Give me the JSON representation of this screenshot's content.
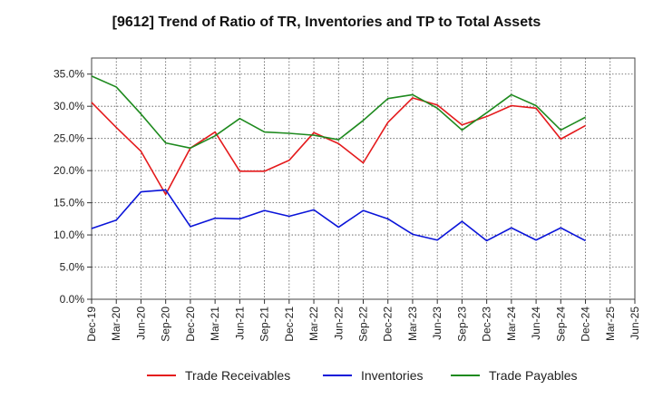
{
  "chart_data": {
    "type": "line",
    "title": "[9612]  Trend of Ratio of TR, Inventories and TP to Total Assets",
    "xlabel": "",
    "ylabel": "",
    "ylim": [
      0,
      0.375
    ],
    "yticks": [
      "0.0%",
      "5.0%",
      "10.0%",
      "15.0%",
      "20.0%",
      "25.0%",
      "30.0%",
      "35.0%"
    ],
    "ytick_values": [
      0,
      0.05,
      0.1,
      0.15,
      0.2,
      0.25,
      0.3,
      0.35
    ],
    "xtick_labels": [
      "Dec-19",
      "Mar-20",
      "Jun-20",
      "Sep-20",
      "Dec-20",
      "Mar-21",
      "Jun-21",
      "Sep-21",
      "Dec-21",
      "Mar-22",
      "Jun-22",
      "Sep-22",
      "Dec-22",
      "Mar-23",
      "Jun-23",
      "Sep-23",
      "Dec-23",
      "Mar-24",
      "Jun-24",
      "Sep-24",
      "Dec-24",
      "Mar-25",
      "Jun-25"
    ],
    "categories": [
      "Dec-19",
      "Mar-20",
      "Jun-20",
      "Sep-20",
      "Dec-20",
      "Mar-21",
      "Jun-21",
      "Sep-21",
      "Dec-21",
      "Mar-22",
      "Jun-22",
      "Sep-22",
      "Dec-22",
      "Mar-23",
      "Jun-23",
      "Sep-23",
      "Dec-23",
      "Mar-24",
      "Jun-24",
      "Sep-24",
      "Dec-24"
    ],
    "grid": true,
    "legend_position": "bottom",
    "series": [
      {
        "name": "Trade Receivables",
        "color": "#e41a1c",
        "values": [
          0.306,
          0.267,
          0.23,
          0.163,
          0.235,
          0.26,
          0.199,
          0.199,
          0.216,
          0.259,
          0.242,
          0.212,
          0.275,
          0.313,
          0.302,
          0.271,
          0.284,
          0.301,
          0.297,
          0.249,
          0.27
        ]
      },
      {
        "name": "Inventories",
        "color": "#0a14d9",
        "values": [
          0.11,
          0.123,
          0.167,
          0.17,
          0.113,
          0.126,
          0.125,
          0.138,
          0.129,
          0.139,
          0.112,
          0.138,
          0.125,
          0.101,
          0.092,
          0.121,
          0.091,
          0.111,
          0.092,
          0.111,
          0.091
        ]
      },
      {
        "name": "Trade Payables",
        "color": "#1e8a1e",
        "values": [
          0.347,
          0.33,
          0.288,
          0.243,
          0.235,
          0.254,
          0.281,
          0.26,
          0.258,
          0.255,
          0.248,
          0.278,
          0.312,
          0.318,
          0.297,
          0.263,
          0.29,
          0.318,
          0.301,
          0.263,
          0.283
        ]
      }
    ]
  }
}
